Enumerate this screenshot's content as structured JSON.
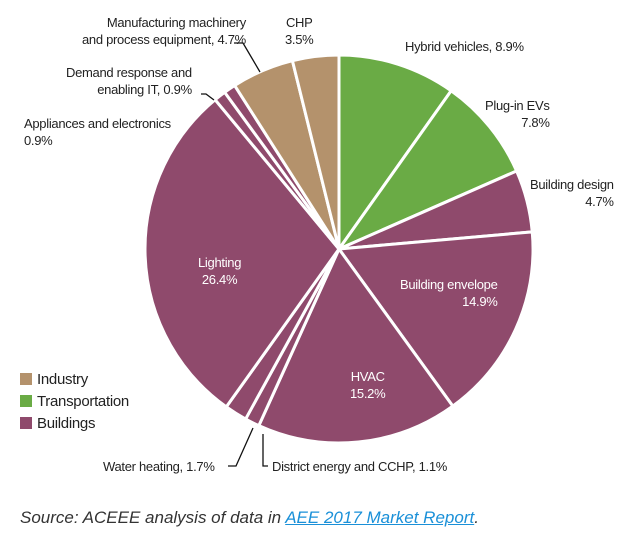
{
  "chart_data": {
    "type": "pie",
    "title": "",
    "slices": [
      {
        "label": "Hybrid vehicles",
        "value": 8.9,
        "text": "Hybrid vehicles, 8.9%",
        "category": "Transportation"
      },
      {
        "label": "Plug-in EVs",
        "value": 7.8,
        "text1": "Plug-in EVs",
        "text2": "7.8%",
        "category": "Transportation"
      },
      {
        "label": "Building design",
        "value": 4.7,
        "text1": "Building design",
        "text2": "4.7%",
        "category": "Buildings"
      },
      {
        "label": "Building envelope",
        "value": 14.9,
        "text1": "Building envelope",
        "text2": "14.9%",
        "category": "Buildings"
      },
      {
        "label": "HVAC",
        "value": 15.2,
        "text1": "HVAC",
        "text2": "15.2%",
        "category": "Buildings"
      },
      {
        "label": "District energy and CCHP",
        "value": 1.1,
        "text": "District energy and CCHP, 1.1%",
        "category": "Buildings"
      },
      {
        "label": "Water heating",
        "value": 1.7,
        "text": "Water heating, 1.7%",
        "category": "Buildings"
      },
      {
        "label": "Lighting",
        "value": 26.4,
        "text1": "Lighting",
        "text2": "26.4%",
        "category": "Buildings"
      },
      {
        "label": "Appliances and electronics",
        "value": 0.9,
        "text1": "Appliances  and electronics",
        "text2": "0.9%",
        "category": "Buildings"
      },
      {
        "label": "Demand response and enabling IT",
        "value": 0.9,
        "text1": "Demand response and",
        "text2": "enabling IT, 0.9%",
        "category": "Buildings"
      },
      {
        "label": "Manufacturing machinery and process equipment",
        "value": 4.7,
        "text1": "Manufacturing machinery",
        "text2": "and process equipment, 4.7%",
        "category": "Industry"
      },
      {
        "label": "CHP",
        "value": 3.5,
        "text1": "CHP",
        "text2": "3.5%",
        "category": "Industry"
      }
    ],
    "legend": [
      {
        "name": "Industry",
        "color": "#b4926c"
      },
      {
        "name": "Transportation",
        "color": "#6aab45"
      },
      {
        "name": "Buildings",
        "color": "#8f4a6c"
      }
    ],
    "legend_position": "bottom-left"
  },
  "source": {
    "prefix": "Source: ACEEE analysis of data in ",
    "link": "AEE 2017 Market Report",
    "suffix": "."
  }
}
